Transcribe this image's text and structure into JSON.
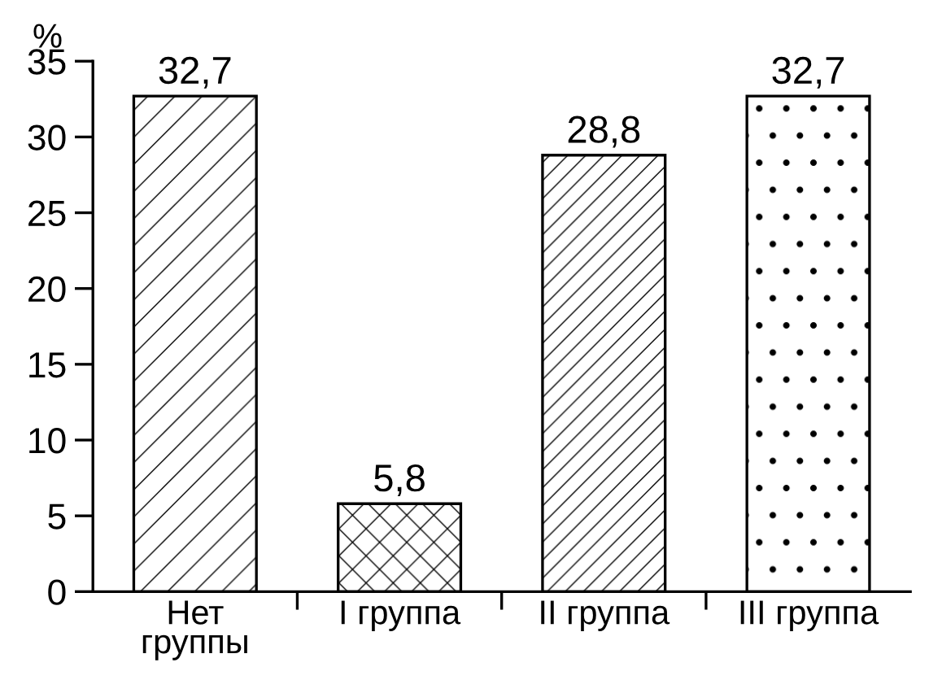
{
  "chart_data": {
    "type": "bar",
    "ylabel": "%",
    "categories": [
      "Нет\nгруппы",
      "I группа",
      "II группа",
      "III группа"
    ],
    "values": [
      32.7,
      5.8,
      28.8,
      32.7
    ],
    "value_labels": [
      "32,7",
      "5,8",
      "28,8",
      "32,7"
    ],
    "colors": [
      "#ffffff",
      "#ffffff",
      "#ffffff",
      "#ffffff"
    ],
    "ylim": [
      0,
      35
    ],
    "yticks": [
      0,
      5,
      10,
      15,
      20,
      25,
      30,
      35
    ],
    "grid": false,
    "legend": false
  }
}
